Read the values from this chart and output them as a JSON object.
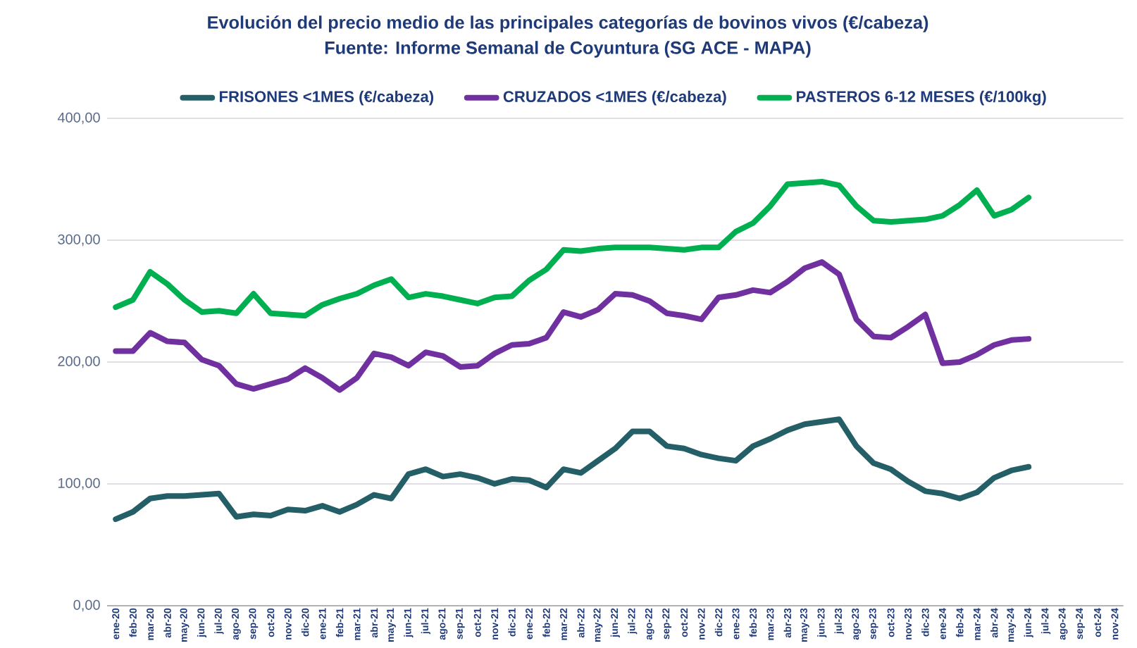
{
  "chart_data": {
    "type": "line",
    "title": "Evolución del precio medio de las principales categorías de bovinos vivos (€/cabeza)",
    "subtitle": "Fuente: Informe Semanal de Coyuntura (SG ACE - MAPA)",
    "categories": [
      "ene-20",
      "feb-20",
      "mar-20",
      "abr-20",
      "may-20",
      "jun-20",
      "jul-20",
      "ago-20",
      "sep-20",
      "oct-20",
      "nov-20",
      "dic-20",
      "ene-21",
      "feb-21",
      "mar-21",
      "abr-21",
      "may-21",
      "jun-21",
      "jul-21",
      "ago-21",
      "sep-21",
      "oct-21",
      "nov-21",
      "dic-21",
      "ene-22",
      "feb-22",
      "mar-22",
      "abr-22",
      "may-22",
      "jun-22",
      "jul-22",
      "ago-22",
      "sep-22",
      "oct-22",
      "nov-22",
      "dic-22",
      "ene-23",
      "feb-23",
      "mar-23",
      "abr-23",
      "may-23",
      "jun-23",
      "jul-23",
      "ago-23",
      "sep-23",
      "oct-23",
      "nov-23",
      "dic-23",
      "ene-24",
      "feb-24",
      "mar-24",
      "abr-24",
      "may-24",
      "jun-24",
      "jul-24",
      "ago-24",
      "sep-24",
      "oct-24",
      "nov-24"
    ],
    "series": [
      {
        "name": "FRISONES <1MES (€/cabeza)",
        "color": "#245e66",
        "values": [
          71,
          77,
          88,
          90,
          90,
          91,
          92,
          73,
          75,
          74,
          79,
          78,
          82,
          77,
          83,
          91,
          88,
          108,
          112,
          106,
          108,
          105,
          100,
          104,
          103,
          97,
          112,
          109,
          119,
          129,
          143,
          143,
          131,
          129,
          124,
          121,
          119,
          131,
          137,
          144,
          149,
          151,
          153,
          131,
          117,
          112,
          102,
          94,
          92,
          88,
          93,
          105,
          111,
          114,
          null,
          null,
          null,
          null,
          null
        ]
      },
      {
        "name": "CRUZADOS <1MES (€/cabeza)",
        "color": "#7030a0",
        "values": [
          209,
          209,
          224,
          217,
          216,
          202,
          197,
          182,
          178,
          182,
          186,
          195,
          187,
          177,
          187,
          207,
          204,
          197,
          208,
          205,
          196,
          197,
          207,
          214,
          215,
          220,
          241,
          237,
          243,
          256,
          255,
          250,
          240,
          238,
          235,
          253,
          255,
          259,
          257,
          266,
          277,
          282,
          272,
          235,
          221,
          220,
          229,
          239,
          199,
          200,
          206,
          214,
          218,
          219,
          null,
          null,
          null,
          null,
          null
        ]
      },
      {
        "name": "PASTEROS 6-12 MESES (€/100kg)",
        "color": "#00b050",
        "values": [
          245,
          251,
          274,
          264,
          251,
          241,
          242,
          240,
          256,
          240,
          239,
          238,
          247,
          252,
          256,
          263,
          268,
          253,
          256,
          254,
          251,
          248,
          253,
          254,
          267,
          276,
          292,
          291,
          293,
          294,
          294,
          294,
          293,
          292,
          294,
          294,
          307,
          314,
          328,
          346,
          347,
          348,
          345,
          328,
          316,
          315,
          316,
          317,
          320,
          329,
          341,
          320,
          325,
          335,
          null,
          null,
          null,
          null,
          null
        ]
      }
    ],
    "ylim": [
      0,
      400
    ],
    "yticks": [
      {
        "value": 0,
        "label": "0,00"
      },
      {
        "value": 100,
        "label": "100,00"
      },
      {
        "value": 200,
        "label": "200,00"
      },
      {
        "value": 300,
        "label": "300,00"
      },
      {
        "value": 400,
        "label": "400,00"
      }
    ],
    "grid": "y",
    "legend": "top"
  }
}
